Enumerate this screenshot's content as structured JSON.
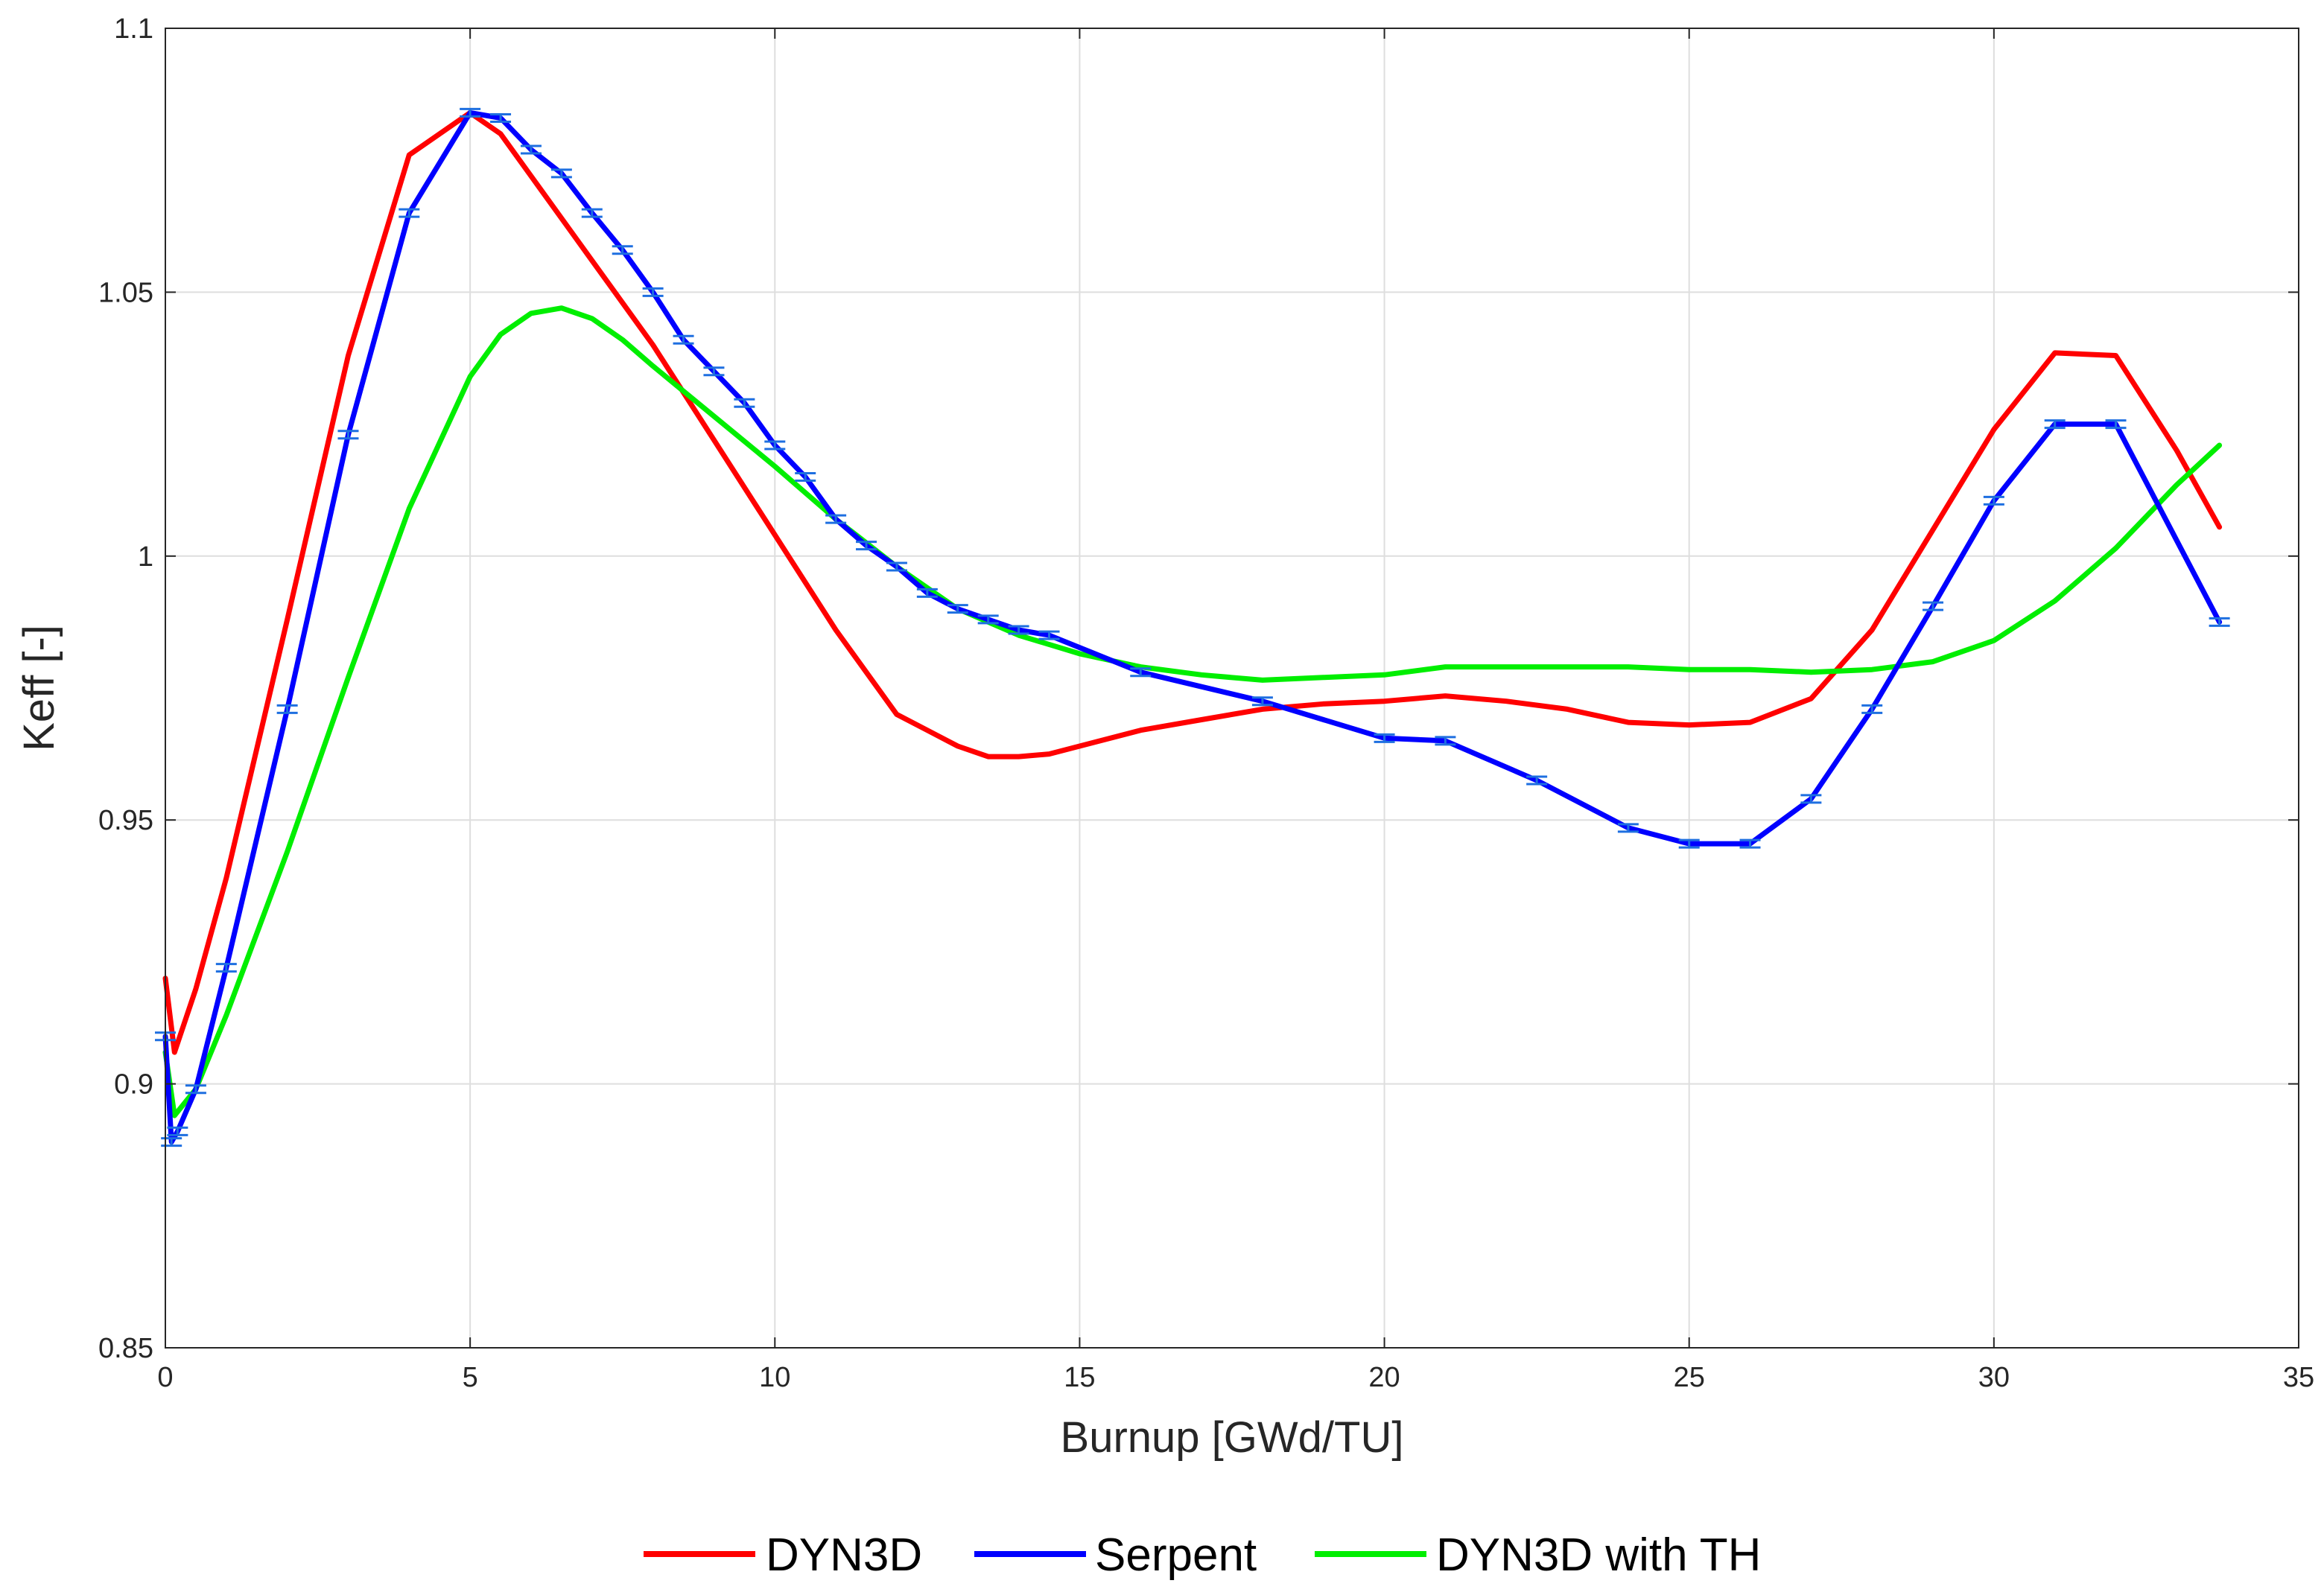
{
  "chart_data": {
    "type": "line",
    "title": "",
    "xlabel": "Burnup  [GWd/TU]",
    "ylabel": "Keff [-]",
    "xlim": [
      0,
      35
    ],
    "ylim": [
      0.85,
      1.1
    ],
    "xticks": [
      0,
      5,
      10,
      15,
      20,
      25,
      30,
      35
    ],
    "xtick_labels": [
      "0",
      "5",
      "10",
      "15",
      "20",
      "25",
      "30",
      "35"
    ],
    "yticks": [
      0.85,
      0.9,
      0.95,
      1.0,
      1.05,
      1.1
    ],
    "ytick_labels": [
      "0.85",
      "0.9",
      "0.95",
      "1",
      "1.05",
      "1.1"
    ],
    "grid": true,
    "legend_placement": "bottom-center",
    "series": [
      {
        "name": "DYN3D",
        "color": "#ff0000",
        "x": [
          0,
          0.15,
          0.5,
          1,
          2,
          3,
          4,
          5,
          5.5,
          6,
          7,
          8,
          9,
          10,
          11,
          12,
          12.5,
          13,
          13.5,
          14,
          14.5,
          15,
          16,
          17,
          18,
          19,
          20,
          21,
          22,
          23,
          24,
          25,
          26,
          27,
          28,
          29,
          30,
          31,
          32,
          33,
          33.7
        ],
        "y": [
          0.92,
          0.906,
          0.918,
          0.939,
          0.988,
          1.038,
          1.076,
          1.084,
          1.08,
          1.072,
          1.056,
          1.04,
          1.022,
          1.004,
          0.986,
          0.97,
          0.967,
          0.964,
          0.962,
          0.962,
          0.9625,
          0.964,
          0.967,
          0.969,
          0.971,
          0.972,
          0.9725,
          0.9735,
          0.9725,
          0.971,
          0.9685,
          0.968,
          0.9685,
          0.973,
          0.986,
          1.005,
          1.024,
          1.0385,
          1.038,
          1.02,
          1.0055
        ]
      },
      {
        "name": "Serpent",
        "color": "#0000ff",
        "error_bars": true,
        "x": [
          0,
          0.1,
          0.2,
          0.5,
          1,
          2,
          3,
          4,
          5,
          5.5,
          6,
          6.5,
          7,
          7.5,
          8,
          8.5,
          9,
          9.5,
          10,
          10.5,
          11,
          11.5,
          12,
          12.5,
          13,
          13.5,
          14,
          14.5,
          16,
          18,
          20,
          21,
          22.5,
          24,
          25,
          26,
          27,
          28,
          29,
          30,
          31,
          32,
          33.7
        ],
        "y": [
          0.909,
          0.889,
          0.891,
          0.899,
          0.922,
          0.971,
          1.023,
          1.065,
          1.084,
          1.083,
          1.077,
          1.0725,
          1.065,
          1.058,
          1.05,
          1.041,
          1.035,
          1.029,
          1.021,
          1.015,
          1.007,
          1.002,
          0.998,
          0.993,
          0.99,
          0.988,
          0.986,
          0.985,
          0.978,
          0.9725,
          0.9655,
          0.965,
          0.9575,
          0.9485,
          0.9455,
          0.9455,
          0.954,
          0.971,
          0.9905,
          1.0105,
          1.025,
          1.025,
          0.9875
        ]
      },
      {
        "name": "DYN3D with TH",
        "color": "#00ee00",
        "x": [
          0,
          0.15,
          0.5,
          1,
          2,
          3,
          4,
          5,
          5.5,
          6,
          6.5,
          7,
          7.5,
          8,
          9,
          10,
          11,
          12,
          13,
          14,
          15,
          16,
          17,
          18,
          19,
          20,
          21,
          22,
          23,
          24,
          25,
          26,
          27,
          28,
          29,
          30,
          31,
          32,
          33,
          33.7
        ],
        "y": [
          0.906,
          0.894,
          0.899,
          0.913,
          0.944,
          0.977,
          1.009,
          1.034,
          1.042,
          1.046,
          1.047,
          1.045,
          1.041,
          1.036,
          1.0265,
          1.017,
          1.007,
          0.998,
          0.99,
          0.985,
          0.9815,
          0.979,
          0.9775,
          0.9765,
          0.977,
          0.9775,
          0.979,
          0.979,
          0.979,
          0.979,
          0.9785,
          0.9785,
          0.978,
          0.9785,
          0.98,
          0.984,
          0.9915,
          1.0015,
          1.0135,
          1.021
        ]
      }
    ]
  }
}
